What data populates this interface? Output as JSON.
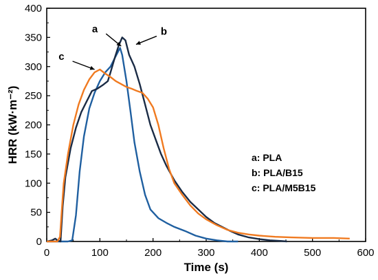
{
  "chart_data": {
    "type": "line",
    "xlabel": "Time (s)",
    "ylabel": "HRR (kW·m⁻²)",
    "xlim": [
      0,
      600
    ],
    "ylim": [
      0,
      400
    ],
    "xticks": [
      0,
      100,
      200,
      300,
      400,
      500,
      600
    ],
    "yticks": [
      0,
      50,
      100,
      150,
      200,
      250,
      300,
      350,
      400
    ],
    "grid": false,
    "legend_placement": "right-middle",
    "legend": [
      "a: PLA",
      "b: PLA/B15",
      "c: PLA/M5B15"
    ],
    "series": [
      {
        "name": "a: PLA",
        "label": "a",
        "color": "#1f5fa0",
        "points": [
          [
            0,
            0
          ],
          [
            40,
            0
          ],
          [
            48,
            2
          ],
          [
            55,
            45
          ],
          [
            62,
            120
          ],
          [
            70,
            180
          ],
          [
            80,
            228
          ],
          [
            90,
            255
          ],
          [
            100,
            275
          ],
          [
            110,
            290
          ],
          [
            120,
            300
          ],
          [
            130,
            318
          ],
          [
            138,
            332
          ],
          [
            142,
            320
          ],
          [
            150,
            275
          ],
          [
            158,
            220
          ],
          [
            165,
            170
          ],
          [
            175,
            120
          ],
          [
            185,
            80
          ],
          [
            195,
            55
          ],
          [
            210,
            40
          ],
          [
            225,
            32
          ],
          [
            240,
            25
          ],
          [
            260,
            18
          ],
          [
            280,
            10
          ],
          [
            300,
            5
          ],
          [
            320,
            2
          ],
          [
            340,
            0
          ],
          [
            360,
            0
          ]
        ]
      },
      {
        "name": "b: PLA/B15",
        "label": "b",
        "color": "#1a2b45",
        "points": [
          [
            0,
            0
          ],
          [
            10,
            2
          ],
          [
            16,
            5
          ],
          [
            20,
            2
          ],
          [
            26,
            0
          ],
          [
            30,
            60
          ],
          [
            35,
            110
          ],
          [
            45,
            160
          ],
          [
            55,
            195
          ],
          [
            65,
            222
          ],
          [
            75,
            240
          ],
          [
            85,
            258
          ],
          [
            95,
            262
          ],
          [
            105,
            268
          ],
          [
            115,
            275
          ],
          [
            120,
            290
          ],
          [
            128,
            315
          ],
          [
            135,
            335
          ],
          [
            142,
            350
          ],
          [
            148,
            345
          ],
          [
            155,
            320
          ],
          [
            165,
            300
          ],
          [
            175,
            270
          ],
          [
            185,
            235
          ],
          [
            195,
            200
          ],
          [
            205,
            175
          ],
          [
            215,
            150
          ],
          [
            225,
            130
          ],
          [
            240,
            105
          ],
          [
            255,
            85
          ],
          [
            270,
            68
          ],
          [
            285,
            55
          ],
          [
            300,
            42
          ],
          [
            315,
            32
          ],
          [
            330,
            25
          ],
          [
            345,
            18
          ],
          [
            360,
            12
          ],
          [
            380,
            7
          ],
          [
            400,
            4
          ],
          [
            420,
            2
          ],
          [
            440,
            1
          ],
          [
            452,
            0
          ]
        ]
      },
      {
        "name": "c: PLA/M5B15",
        "label": "c",
        "color": "#f07a20",
        "points": [
          [
            0,
            0
          ],
          [
            20,
            0
          ],
          [
            25,
            8
          ],
          [
            28,
            50
          ],
          [
            32,
            100
          ],
          [
            40,
            150
          ],
          [
            50,
            200
          ],
          [
            60,
            235
          ],
          [
            70,
            260
          ],
          [
            80,
            278
          ],
          [
            90,
            290
          ],
          [
            100,
            295
          ],
          [
            110,
            288
          ],
          [
            120,
            282
          ],
          [
            130,
            275
          ],
          [
            140,
            270
          ],
          [
            150,
            265
          ],
          [
            160,
            262
          ],
          [
            170,
            258
          ],
          [
            180,
            255
          ],
          [
            190,
            245
          ],
          [
            200,
            230
          ],
          [
            210,
            200
          ],
          [
            220,
            160
          ],
          [
            230,
            125
          ],
          [
            240,
            100
          ],
          [
            255,
            80
          ],
          [
            270,
            62
          ],
          [
            285,
            48
          ],
          [
            300,
            38
          ],
          [
            320,
            28
          ],
          [
            340,
            20
          ],
          [
            360,
            15
          ],
          [
            380,
            12
          ],
          [
            400,
            10
          ],
          [
            430,
            8
          ],
          [
            460,
            7
          ],
          [
            500,
            6
          ],
          [
            540,
            6
          ],
          [
            570,
            5
          ]
        ]
      }
    ],
    "annotations": [
      {
        "label": "a",
        "series": 0,
        "at": [
          140,
          335
        ]
      },
      {
        "label": "b",
        "series": 1,
        "at": [
          168,
          338
        ]
      },
      {
        "label": "c",
        "series": 2,
        "at": [
          90,
          295
        ]
      }
    ]
  }
}
